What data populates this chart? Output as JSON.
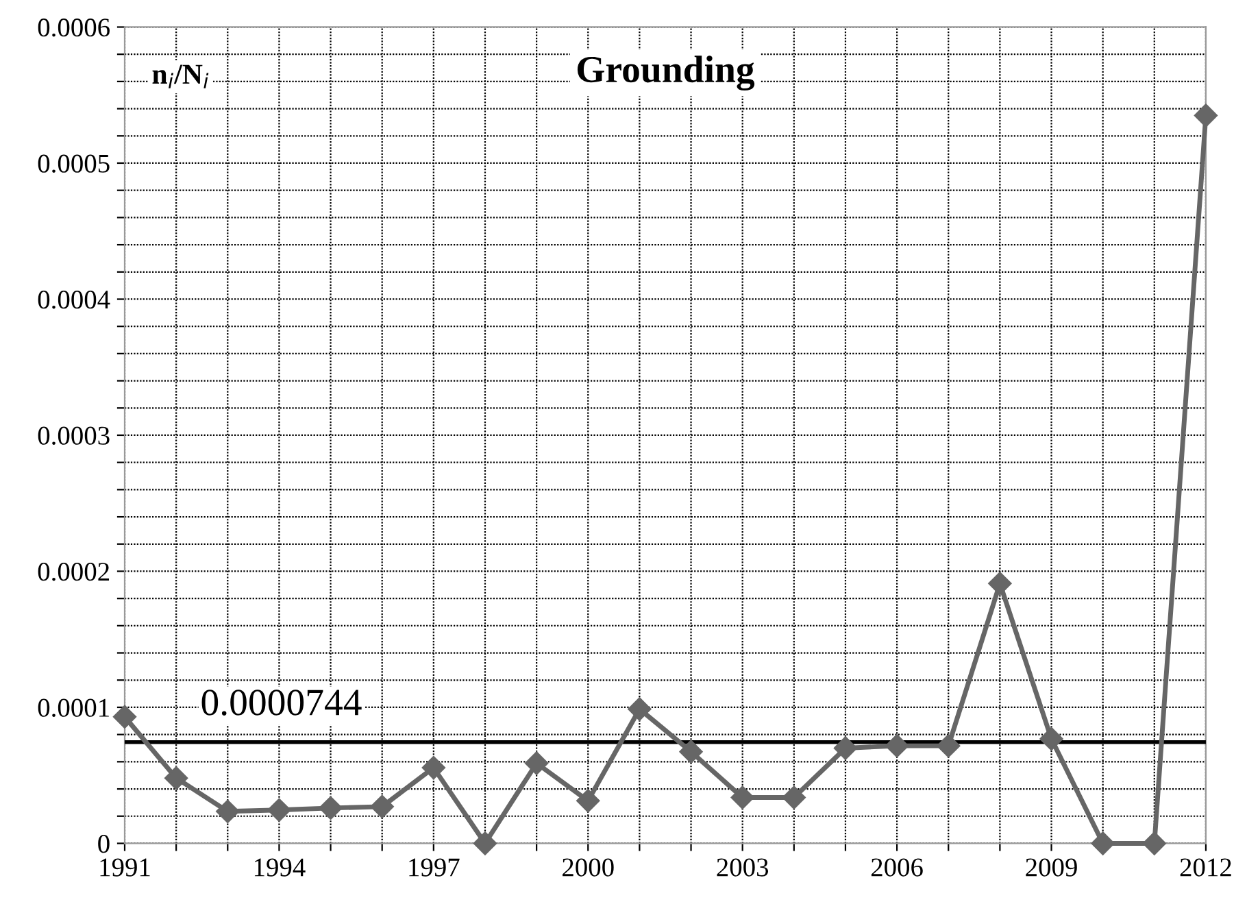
{
  "chart_data": {
    "type": "line",
    "title": "Grounding",
    "ylabel": "n$_{i}$/N$_{i}$",
    "x": [
      1991,
      1992,
      1993,
      1994,
      1995,
      1996,
      1997,
      1998,
      1999,
      2000,
      2001,
      2002,
      2003,
      2004,
      2005,
      2006,
      2007,
      2008,
      2009,
      2010,
      2011,
      2012
    ],
    "series": [
      {
        "color": "#666666",
        "values": [
          9.3e-05,
          4.8e-05,
          2.35e-05,
          2.45e-05,
          2.6e-05,
          2.7e-05,
          5.56e-05,
          0,
          5.89e-05,
          3.13e-05,
          9.87e-05,
          6.74e-05,
          3.37e-05,
          3.37e-05,
          7e-05,
          7.17e-05,
          7.17e-05,
          0.000191,
          7.68e-05,
          0,
          0,
          0.000535
        ]
      }
    ],
    "marker": "diamond",
    "line_style": "solid",
    "grid": true,
    "legend": false,
    "xlim": [
      1991,
      2012
    ],
    "xticks": [
      1991,
      {
        "value": 1992,
        "label": null
      },
      {
        "value": 1993,
        "label": null
      },
      1994,
      {
        "value": 1995,
        "label": null
      },
      {
        "value": 1996,
        "label": null
      },
      1997,
      {
        "value": 1998,
        "label": null
      },
      {
        "value": 1999,
        "label": null
      },
      2000,
      {
        "value": 2001,
        "label": null
      },
      {
        "value": 2002,
        "label": null
      },
      2003,
      {
        "value": 2004,
        "label": null
      },
      {
        "value": 2005,
        "label": null
      },
      2006,
      {
        "value": 2007,
        "label": null
      },
      {
        "value": 2008,
        "label": null
      },
      2009,
      {
        "value": 2010,
        "label": null
      },
      {
        "value": 2011,
        "label": null
      },
      2012
    ],
    "ylim": [
      0,
      0.0006
    ],
    "yticks": [
      0,
      {
        "value": 2e-05,
        "label": null
      },
      {
        "value": 4e-05,
        "label": null
      },
      {
        "value": 6e-05,
        "label": null
      },
      {
        "value": 8e-05,
        "label": null
      },
      0.0001,
      {
        "value": 0.00012,
        "label": null
      },
      {
        "value": 0.00014,
        "label": null
      },
      {
        "value": 0.00016,
        "label": null
      },
      {
        "value": 0.00018,
        "label": null
      },
      0.0002,
      {
        "value": 0.00022,
        "label": null
      },
      {
        "value": 0.00024,
        "label": null
      },
      {
        "value": 0.00026,
        "label": null
      },
      {
        "value": 0.00028,
        "label": null
      },
      0.0003,
      {
        "value": 0.00032,
        "label": null
      },
      {
        "value": 0.00034,
        "label": null
      },
      {
        "value": 0.00036,
        "label": null
      },
      {
        "value": 0.00038,
        "label": null
      },
      0.0004,
      {
        "value": 0.00042,
        "label": null
      },
      {
        "value": 0.00044,
        "label": null
      },
      {
        "value": 0.00046,
        "label": null
      },
      {
        "value": 0.00048,
        "label": null
      },
      0.0005,
      {
        "value": 0.00052,
        "label": null
      },
      {
        "value": 0.00054,
        "label": null
      },
      {
        "value": 0.00056,
        "label": null
      },
      {
        "value": 0.00058,
        "label": null
      },
      0.0006
    ],
    "ref_lines": [
      {
        "axis": "y",
        "value": 7.44e-05,
        "label": "0.0000744",
        "color": "#000000",
        "line_style": "solid"
      }
    ]
  }
}
